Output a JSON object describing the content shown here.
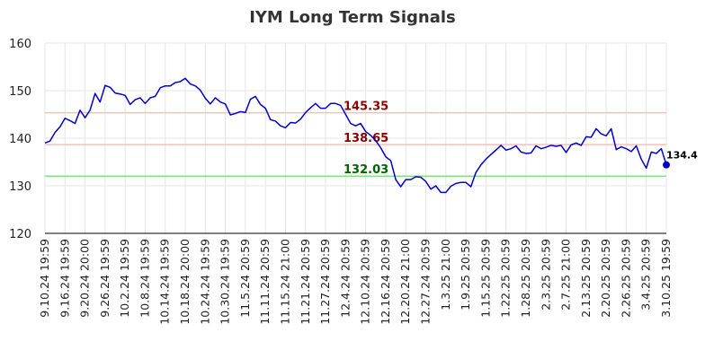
{
  "chart_data": {
    "type": "line",
    "title": "IYM Long Term Signals",
    "ylim": [
      120,
      160
    ],
    "yticks": [
      120,
      130,
      140,
      150,
      160
    ],
    "grid": true,
    "x_labels": [
      "9.10.24 19:59",
      "9.16.24 19:59",
      "9.20.24 20:00",
      "9.26.24 19:59",
      "10.2.24 19:59",
      "10.8.24 19:59",
      "10.14.24 19:59",
      "10.18.24 20:00",
      "10.24.24 19:59",
      "10.30.24 19:59",
      "11.5.24 20:59",
      "11.11.24 20:59",
      "11.15.24 21:00",
      "11.21.24 20:59",
      "11.27.24 20:59",
      "12.4.24 20:59",
      "12.10.24 20:59",
      "12.16.24 20:59",
      "12.20.24 21:00",
      "12.27.24 20:59",
      "1.3.25 21:00",
      "1.9.25 20:59",
      "1.15.25 20:59",
      "1.22.25 20:59",
      "1.28.25 20:59",
      "2.3.25 20:59",
      "2.7.25 21:00",
      "2.13.25 20:59",
      "2.20.25 20:59",
      "2.26.25 20:59",
      "3.4.25 20:59",
      "3.10.25 19:59"
    ],
    "series": [
      {
        "color": "#0000cc",
        "values": [
          139.0,
          139.4,
          141.2,
          142.4,
          144.2,
          143.7,
          143.1,
          145.9,
          144.3,
          145.9,
          149.4,
          147.6,
          151.1,
          150.7,
          149.5,
          149.3,
          149.0,
          147.1,
          148.1,
          148.5,
          147.3,
          148.5,
          148.8,
          150.6,
          151.0,
          151.0,
          151.7,
          151.9,
          152.6,
          151.4,
          151.0,
          150.1,
          148.4,
          147.2,
          148.5,
          147.6,
          147.2,
          144.9,
          145.2,
          145.6,
          145.4,
          148.2,
          148.8,
          147.1,
          146.3,
          143.9,
          143.6,
          142.6,
          142.2,
          143.3,
          143.2,
          144.0,
          145.4,
          146.4,
          147.3,
          146.3,
          146.3,
          147.3,
          147.3,
          146.9,
          145.0,
          143.1,
          142.6,
          143.1,
          141.4,
          140.6,
          139.5,
          138.0,
          136.1,
          135.3,
          131.3,
          129.8,
          131.3,
          131.3,
          131.9,
          131.8,
          130.9,
          129.3,
          130.0,
          128.6,
          128.6,
          129.9,
          130.5,
          130.7,
          130.7,
          129.8,
          132.8,
          134.4,
          135.6,
          136.6,
          137.5,
          138.5,
          137.5,
          137.8,
          138.4,
          137.1,
          136.8,
          136.9,
          138.4,
          137.8,
          138.1,
          138.5,
          138.3,
          138.5,
          137.0,
          138.6,
          139.0,
          138.5,
          140.3,
          140.2,
          142.0,
          140.9,
          140.5,
          142.0,
          137.6,
          138.2,
          137.8,
          137.2,
          138.4,
          135.6,
          133.7,
          137.1,
          136.8,
          137.8,
          134.4
        ]
      }
    ],
    "levels": [
      {
        "value": 145.35,
        "label": "145.35",
        "line_color": "#ffbbbb",
        "text_color": "#8b0000"
      },
      {
        "value": 138.65,
        "label": "138.65",
        "line_color": "#ffbbbb",
        "text_color": "#8b0000"
      },
      {
        "value": 132.03,
        "label": "132.03",
        "line_color": "#88dd88",
        "text_color": "#006400"
      }
    ],
    "last_point": {
      "value": 134.4,
      "label": "134.4",
      "color": "#0000cc"
    }
  }
}
